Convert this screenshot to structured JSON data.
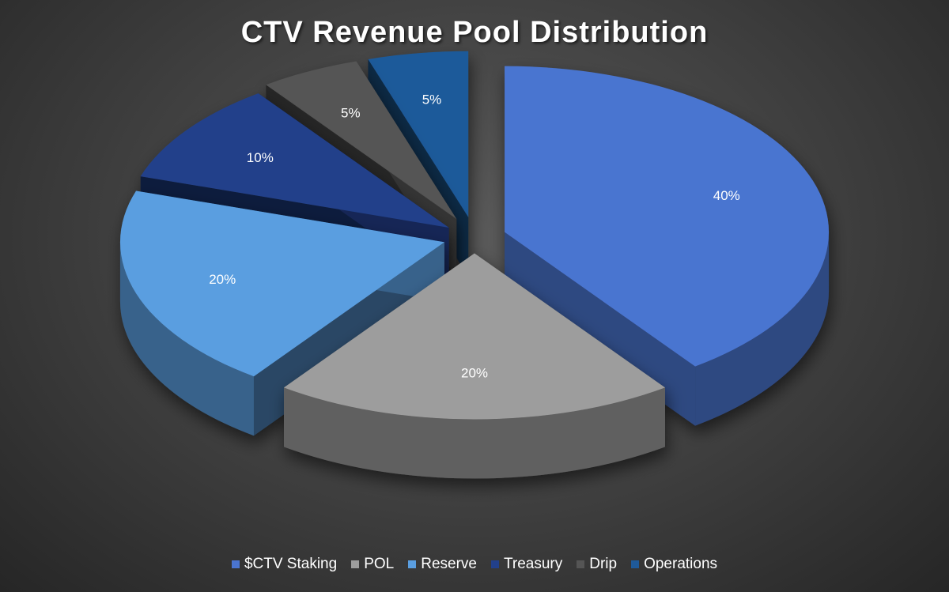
{
  "chart_data": {
    "type": "pie",
    "title": "CTV Revenue Pool Distribution",
    "slices": [
      {
        "label": "$CTV Staking",
        "value": 40,
        "display": "40%",
        "color": "#4a74d0"
      },
      {
        "label": "POL",
        "value": 20,
        "display": "20%",
        "color": "#9d9d9d"
      },
      {
        "label": "Reserve",
        "value": 20,
        "display": "20%",
        "color": "#5a9ee0"
      },
      {
        "label": "Treasury",
        "value": 10,
        "display": "10%",
        "color": "#22408a"
      },
      {
        "label": "Drip",
        "value": 5,
        "display": "5%",
        "color": "#555555"
      },
      {
        "label": "Operations",
        "value": 5,
        "display": "5%",
        "color": "#1f5a9a"
      }
    ],
    "exploded": true,
    "style_3d": true,
    "legend_position": "bottom"
  }
}
